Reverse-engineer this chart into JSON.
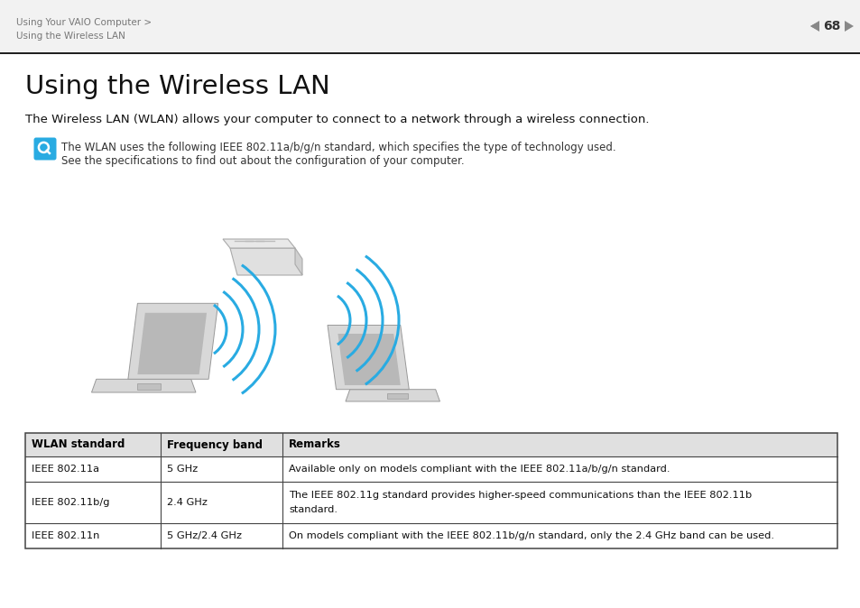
{
  "bg_color": "#ffffff",
  "page_num": "68",
  "breadcrumb_line1": "Using Your VAIO Computer >",
  "breadcrumb_line2": "Using the Wireless LAN",
  "title": "Using the Wireless LAN",
  "subtitle": "The Wireless LAN (WLAN) allows your computer to connect to a network through a wireless connection.",
  "note_line1": "The WLAN uses the following IEEE 802.11a/b/g/n standard, which specifies the type of technology used.",
  "note_line2": "See the specifications to find out about the configuration of your computer.",
  "table_headers": [
    "WLAN standard",
    "Frequency band",
    "Remarks"
  ],
  "table_rows": [
    [
      "IEEE 802.11a",
      "5 GHz",
      "Available only on models compliant with the IEEE 802.11a/b/g/n standard."
    ],
    [
      "IEEE 802.11b/g",
      "2.4 GHz",
      "The IEEE 802.11g standard provides higher-speed communications than the IEEE 802.11b\nstandard."
    ],
    [
      "IEEE 802.11n",
      "5 GHz/2.4 GHz",
      "On models compliant with the IEEE 802.11b/g/n standard, only the 2.4 GHz band can be used."
    ]
  ],
  "accent_color": "#29abe2",
  "laptop_body_color": "#d8d8d8",
  "laptop_screen_color": "#b8b8b8",
  "laptop_edge_color": "#999999",
  "router_color": "#e0e0e0",
  "router_edge_color": "#aaaaaa"
}
